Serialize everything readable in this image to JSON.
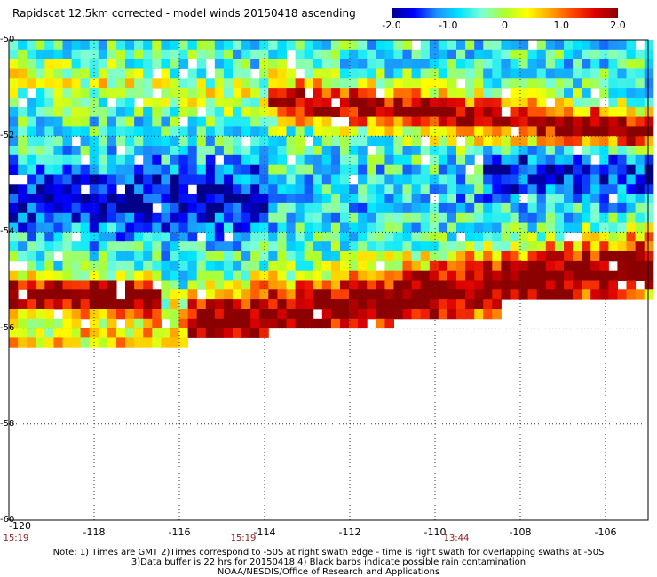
{
  "title": "Rapidscat 12.5km corrected - model winds 20150418 ascending",
  "colorbar": {
    "ticks": [
      "-2.0",
      "-1.0",
      "0",
      "1.0",
      "2.0"
    ],
    "tick_values": [
      -2,
      -1,
      0,
      1,
      2
    ],
    "range": [
      -2,
      2
    ],
    "colors": [
      "#00008b",
      "#0000ff",
      "#1e90ff",
      "#00e5ff",
      "#7fffd4",
      "#adff2f",
      "#ffff00",
      "#ffa500",
      "#ff4500",
      "#dc0000",
      "#8b0000"
    ]
  },
  "map": {
    "lon_range": [
      -120,
      -105
    ],
    "lat_range": [
      -60,
      -50
    ],
    "lon_ticks": [
      "-118",
      "-116",
      "-114",
      "-112",
      "-110",
      "-108",
      "-106"
    ],
    "lon_tick_values": [
      -118,
      -116,
      -114,
      -112,
      -110,
      -108,
      -106
    ],
    "lat_ticks": [
      "-50",
      "-52",
      "-54",
      "-56",
      "-58",
      "-60"
    ],
    "lat_tick_values": [
      -50,
      -52,
      -54,
      -56,
      -58,
      -60
    ],
    "corner_lon_label": "-120",
    "time_labels": [
      {
        "text": "15:19",
        "lon": -120
      },
      {
        "text": "15:19",
        "lon": -114.5
      },
      {
        "text": "13:44",
        "lon": -109.5
      }
    ],
    "grid": "dotted",
    "data_extent_note": "swath data covers approx lat -50 to -56.6"
  },
  "notes": [
    "Note: 1) Times are GMT 2)Times correspond to -50S at right swath edge - time is right swath for overlapping swaths at -50S",
    "3)Data buffer is 22 hrs for 20150418 4) Black barbs indicate possible rain contamination",
    "NOAA/NESDIS/Office of Research and Applications"
  ]
}
